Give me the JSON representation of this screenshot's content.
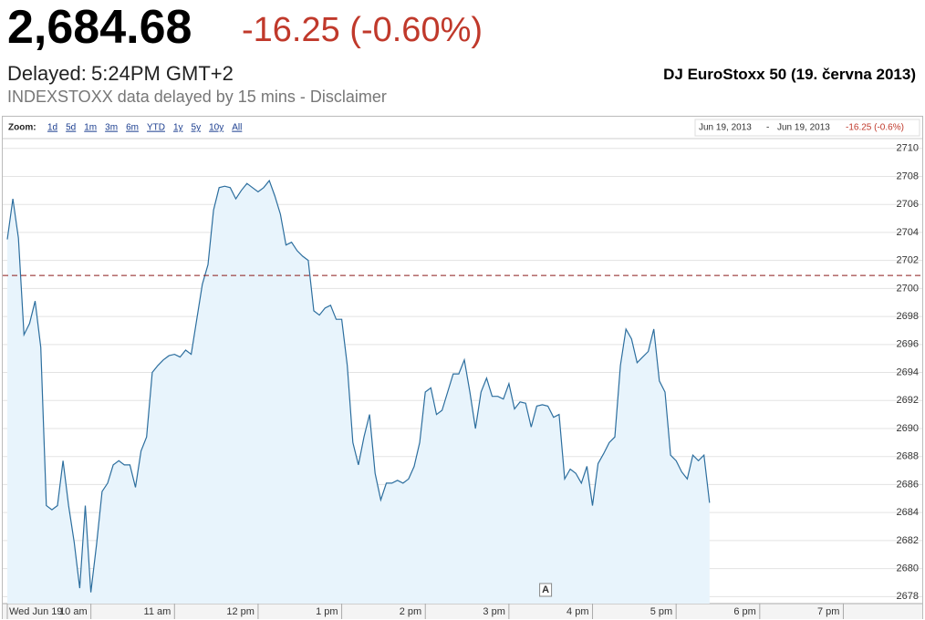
{
  "header": {
    "price": "2,684.68",
    "change": "-16.25 (-0.60%)",
    "delayed_label": "Delayed:",
    "time": "5:24PM GMT+2",
    "index_title": "DJ EuroStoxx 50 (19. června 2013)",
    "disclaimer": "INDEXSTOXX data delayed by 15 mins - Disclaimer"
  },
  "toolbar": {
    "zoom_label": "Zoom:",
    "zoom_options": [
      "1d",
      "5d",
      "1m",
      "3m",
      "6m",
      "YTD",
      "1y",
      "5y",
      "10y",
      "All"
    ],
    "range_start": "Jun 19, 2013",
    "range_separator": "-",
    "range_end": "Jun 19, 2013",
    "range_change": "-16.25 (-0.6%)"
  },
  "chart_data": {
    "type": "line",
    "x": [
      540,
      544,
      548,
      552,
      556,
      560,
      564,
      568,
      572,
      576,
      580,
      584,
      588,
      592,
      596,
      600,
      604,
      608,
      612,
      616,
      620,
      624,
      628,
      632,
      636,
      640,
      644,
      648,
      652,
      656,
      660,
      664,
      668,
      672,
      676,
      680,
      684,
      688,
      692,
      696,
      700,
      704,
      708,
      712,
      716,
      720,
      724,
      728,
      732,
      736,
      740,
      744,
      748,
      752,
      756,
      760,
      764,
      768,
      772,
      776,
      780,
      784,
      788,
      792,
      796,
      800,
      804,
      808,
      812,
      816,
      820,
      824,
      828,
      832,
      836,
      840,
      844,
      848,
      852,
      856,
      860,
      864,
      868,
      872,
      876,
      880,
      884,
      888,
      892,
      896,
      900,
      904,
      908,
      912,
      916,
      920,
      924,
      928,
      932,
      936,
      940,
      944,
      948,
      952,
      956,
      960,
      964,
      968,
      972,
      976,
      980,
      984,
      988,
      992,
      996,
      1000,
      1004,
      1008,
      1012,
      1016,
      1020,
      1024,
      1028,
      1032,
      1036,
      1040,
      1044
    ],
    "series": [
      {
        "name": "DJ EuroStoxx 50",
        "color": "#2c6e9e",
        "fill": "#e8f4fc",
        "values": [
          2703.5,
          2706.4,
          2703.6,
          2696.7,
          2697.5,
          2699.1,
          2695.8,
          2684.5,
          2684.2,
          2684.5,
          2687.7,
          2684.5,
          2681.9,
          2678.6,
          2684.5,
          2678.3,
          2681.7,
          2685.5,
          2686.1,
          2687.4,
          2687.7,
          2687.4,
          2687.4,
          2685.8,
          2688.4,
          2689.4,
          2694.0,
          2694.5,
          2694.9,
          2695.2,
          2695.3,
          2695.1,
          2695.6,
          2695.3,
          2697.8,
          2700.3,
          2701.7,
          2705.6,
          2707.2,
          2707.3,
          2707.2,
          2706.4,
          2707.0,
          2707.5,
          2707.2,
          2706.9,
          2707.2,
          2707.7,
          2706.6,
          2705.3,
          2703.1,
          2703.3,
          2702.7,
          2702.3,
          2702.0,
          2698.4,
          2698.1,
          2698.6,
          2698.8,
          2697.8,
          2697.8,
          2694.5,
          2689.0,
          2687.4,
          2689.4,
          2691.0,
          2686.8,
          2684.9,
          2686.1,
          2686.1,
          2686.3,
          2686.1,
          2686.4,
          2687.3,
          2689.0,
          2692.6,
          2692.9,
          2691.0,
          2691.3,
          2692.6,
          2693.9,
          2693.9,
          2694.9,
          2692.6,
          2690.0,
          2692.6,
          2693.6,
          2692.3,
          2692.3,
          2692.1,
          2693.2,
          2691.4,
          2691.9,
          2691.8,
          2690.1,
          2691.6,
          2691.7,
          2691.6,
          2690.8,
          2691.0,
          2686.4,
          2687.1,
          2686.8,
          2686.1,
          2687.3,
          2684.5,
          2687.5,
          2688.2,
          2689.0,
          2689.4,
          2694.5,
          2697.1,
          2696.4,
          2694.7,
          2695.1,
          2695.5,
          2697.1,
          2693.4,
          2692.6,
          2688.1,
          2687.7,
          2686.9,
          2686.4,
          2688.1,
          2687.7,
          2688.1,
          2684.7
        ]
      }
    ],
    "xlim": [
      540,
      1196
    ],
    "xticks": [
      {
        "value": 540,
        "label": "Wed Jun 19"
      },
      {
        "value": 600,
        "label": "10 am"
      },
      {
        "value": 660,
        "label": "11 am"
      },
      {
        "value": 720,
        "label": "12 pm"
      },
      {
        "value": 780,
        "label": "1 pm"
      },
      {
        "value": 840,
        "label": "2 pm"
      },
      {
        "value": 900,
        "label": "3 pm"
      },
      {
        "value": 960,
        "label": "4 pm"
      },
      {
        "value": 1020,
        "label": "5 pm"
      },
      {
        "value": 1080,
        "label": "6 pm"
      },
      {
        "value": 1140,
        "label": "7 pm"
      }
    ],
    "ylim": [
      2677.5,
      2710.7
    ],
    "yticks": [
      2678,
      2680,
      2682,
      2684,
      2686,
      2688,
      2690,
      2692,
      2694,
      2696,
      2698,
      2700,
      2702,
      2704,
      2706,
      2708,
      2710
    ],
    "grid": true,
    "previous_close": 2700.93,
    "previous_close_color": "#8b1a1a",
    "annotations": [
      {
        "label": "A",
        "x": 926
      }
    ]
  }
}
